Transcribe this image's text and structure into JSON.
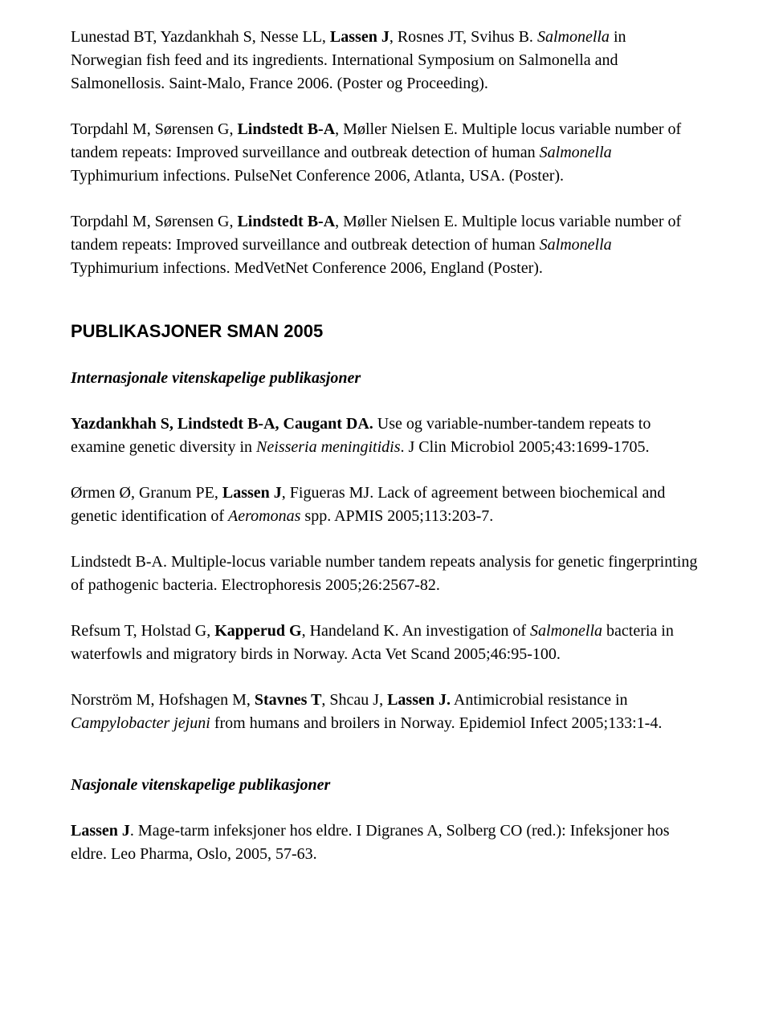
{
  "para1": {
    "seg1": "Lunestad BT, Yazdankhah S, Nesse LL, ",
    "seg2_bold": "Lassen J",
    "seg3": ", Rosnes JT, Svihus B. ",
    "seg4_italic": "Salmonella",
    "seg5": " in Norwegian fish feed and its ingredients. International Symposium on Salmonella and Salmonellosis. Saint-Malo, France 2006. (Poster og Proceeding)."
  },
  "para2": {
    "seg1": "Torpdahl M, Sørensen G, ",
    "seg2_bold": "Lindstedt B-A",
    "seg3": ", Møller Nielsen E. Multiple locus variable number of tandem repeats: Improved surveillance and outbreak detection of human ",
    "seg4_italic": "Salmonella",
    "seg5": " Typhimurium infections. PulseNet Conference 2006, Atlanta, USA. (Poster)."
  },
  "para3": {
    "seg1": "Torpdahl M, Sørensen G, ",
    "seg2_bold": "Lindstedt B-A",
    "seg3": ", Møller Nielsen E. Multiple locus variable number of tandem repeats: Improved surveillance and outbreak detection of human ",
    "seg4_italic": "Salmonella",
    "seg5": " Typhimurium infections. MedVetNet Conference 2006, England (Poster)."
  },
  "heading1": "PUBLIKASJONER SMAN 2005",
  "subheading1": "Internasjonale vitenskapelige publikasjoner",
  "para4": {
    "seg1_bold": "Yazdankhah S, Lindstedt B-A, Caugant DA.",
    "seg2": " Use og variable-number-tandem repeats to examine genetic diversity in ",
    "seg3_italic": "Neisseria meningitidis",
    "seg4": ". J Clin Microbiol 2005;43:1699-1705."
  },
  "para5": {
    "seg1": "Ørmen Ø, Granum PE, ",
    "seg2_bold": "Lassen J",
    "seg3": ", Figueras MJ. Lack of agreement between biochemical and genetic identification of ",
    "seg4_italic": "Aeromonas",
    "seg5": " spp. APMIS 2005;113:203-7."
  },
  "para6": {
    "seg1": "Lindstedt B-A. Multiple-locus variable number tandem repeats analysis for genetic fingerprinting of pathogenic bacteria. Electrophoresis 2005;26:2567-82."
  },
  "para7": {
    "seg1": "Refsum T, Holstad G, ",
    "seg2_bold": "Kapperud G",
    "seg3": ", Handeland K. An investigation of ",
    "seg4_italic": "Salmonella",
    "seg5": " bacteria in waterfowls and migratory birds in Norway. Acta Vet Scand 2005;46:95-100."
  },
  "para8": {
    "seg1": "Norström M, Hofshagen M, ",
    "seg2_bold": "Stavnes T",
    "seg3": ", Shcau J, ",
    "seg4_bold": "Lassen J.",
    "seg5": " Antimicrobial resistance in ",
    "seg6_italic": "Campylobacter jejuni",
    "seg7": " from humans and broilers in Norway. Epidemiol Infect 2005;133:1-4."
  },
  "subheading2": "Nasjonale vitenskapelige publikasjoner",
  "para9": {
    "seg1_bold": "Lassen J",
    "seg2": ". Mage-tarm infeksjoner hos eldre. I Digranes A, Solberg CO (red.): Infeksjoner hos eldre. Leo Pharma, Oslo, 2005, 57-63."
  }
}
